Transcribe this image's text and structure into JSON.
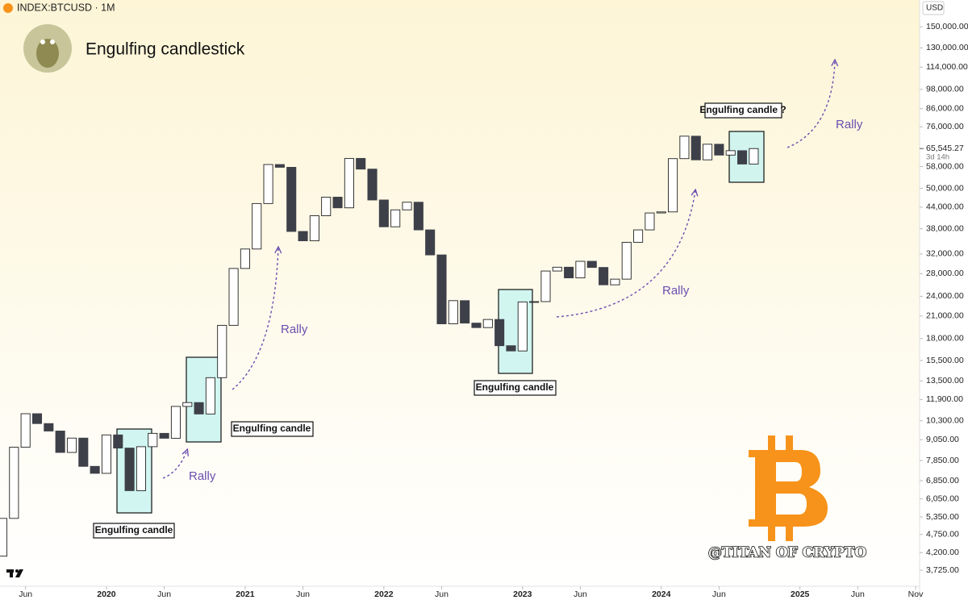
{
  "chart_data": {
    "type": "candlestick",
    "title": "Engulfing candlestick",
    "symbol": "INDEX:BTCUSD · 1M",
    "currency": "USD",
    "log_scale": true,
    "up_color": "#ffffff",
    "down_color": "#3e4049",
    "x": [
      0,
      1,
      2,
      3,
      4,
      5,
      6,
      7,
      8,
      9,
      10,
      11,
      12,
      13,
      14,
      15,
      16,
      17,
      18,
      19,
      20,
      21,
      22,
      23,
      24,
      25,
      26,
      27,
      28,
      29,
      30,
      31,
      32,
      33,
      34,
      35,
      36,
      37,
      38,
      39,
      40,
      41,
      42,
      43,
      44,
      45,
      46,
      47,
      48,
      49,
      50,
      51,
      52,
      53,
      54,
      55,
      56,
      57,
      58,
      59,
      60,
      61,
      62,
      63,
      64,
      65
    ],
    "open": [
      4100,
      5300,
      8600,
      10800,
      10100,
      9600,
      8300,
      9150,
      7550,
      7200,
      9350,
      8550,
      6400,
      8630,
      9450,
      9140,
      11350,
      11650,
      10780,
      13800,
      19700,
      29000,
      33100,
      45100,
      58800,
      57700,
      37300,
      35000,
      41500,
      47100,
      43800,
      61300,
      57000,
      46200,
      38500,
      43200,
      45500,
      37700,
      31800,
      19900,
      23300,
      20000,
      19400,
      20500,
      17150,
      16550,
      23100,
      23150,
      28500,
      29250,
      27200,
      30450,
      29200,
      25950,
      26970,
      34650,
      37700,
      42300,
      42600,
      61200,
      71300,
      60700,
      67500,
      62700,
      64600,
      59000
    ],
    "close": [
      5300,
      8600,
      10800,
      10100,
      9600,
      8300,
      9150,
      7550,
      7200,
      9350,
      8550,
      6400,
      8630,
      9450,
      9140,
      11350,
      11650,
      10780,
      13800,
      19700,
      29000,
      33100,
      45100,
      58800,
      57700,
      37300,
      35000,
      41500,
      47100,
      43800,
      61300,
      57000,
      46200,
      38500,
      43200,
      45500,
      37700,
      31800,
      19900,
      23300,
      20000,
      19400,
      20500,
      17150,
      16550,
      23100,
      23150,
      28500,
      29250,
      27200,
      30450,
      29200,
      25950,
      26970,
      34650,
      37700,
      42300,
      42600,
      61200,
      71300,
      60700,
      67500,
      62700,
      64600,
      59000,
      65545.27
    ],
    "last_price": {
      "value": 65545.27,
      "label": "65,545.27"
    },
    "countdown": "3d 14h",
    "xlim": [
      -0.21,
      79.35
    ],
    "xticks": [
      {
        "value": 2,
        "label": "Jun"
      },
      {
        "value": 9,
        "label": "2020"
      },
      {
        "value": 14,
        "label": "Jun"
      },
      {
        "value": 21,
        "label": "2021"
      },
      {
        "value": 26,
        "label": "Jun"
      },
      {
        "value": 33,
        "label": "2022"
      },
      {
        "value": 38,
        "label": "Jun"
      },
      {
        "value": 45,
        "label": "2023"
      },
      {
        "value": 50,
        "label": "Jun"
      },
      {
        "value": 57,
        "label": "2024"
      },
      {
        "value": 62,
        "label": "Jun"
      },
      {
        "value": 69,
        "label": "2025"
      },
      {
        "value": 74,
        "label": "Jun"
      },
      {
        "value": 79,
        "label": "Nov"
      }
    ],
    "ylim": [
      3340,
      180000
    ],
    "yticks": [
      {
        "value": 150000,
        "label": "150,000.00"
      },
      {
        "value": 130000,
        "label": "130,000.00"
      },
      {
        "value": 114000,
        "label": "114,000.00"
      },
      {
        "value": 98000,
        "label": "98,000.00"
      },
      {
        "value": 86000,
        "label": "86,000.00"
      },
      {
        "value": 76000,
        "label": "76,000.00"
      },
      {
        "value": 58000,
        "label": "58,000.00"
      },
      {
        "value": 50000,
        "label": "50,000.00"
      },
      {
        "value": 44000,
        "label": "44,000.00"
      },
      {
        "value": 38000,
        "label": "38,000.00"
      },
      {
        "value": 32000,
        "label": "32,000.00"
      },
      {
        "value": 28000,
        "label": "28,000.00"
      },
      {
        "value": 24000,
        "label": "24,000.00"
      },
      {
        "value": 21000,
        "label": "21,000.00"
      },
      {
        "value": 18000,
        "label": "18,000.00"
      },
      {
        "value": 15500,
        "label": "15,500.00"
      },
      {
        "value": 13500,
        "label": "13,500.00"
      },
      {
        "value": 11900,
        "label": "11,900.00"
      },
      {
        "value": 10300,
        "label": "10,300.00"
      },
      {
        "value": 9050,
        "label": "9,050.00"
      },
      {
        "value": 7850,
        "label": "7,850.00"
      },
      {
        "value": 6850,
        "label": "6,850.00"
      },
      {
        "value": 6050,
        "label": "6,050.00"
      },
      {
        "value": 5350,
        "label": "5,350.00"
      },
      {
        "value": 4750,
        "label": "4,750.00"
      },
      {
        "value": 4200,
        "label": "4,200.00"
      },
      {
        "value": 3725,
        "label": "3,725.00"
      }
    ],
    "annotations": {
      "engulfing": [
        "Engulfing candle",
        "Engulfing candle",
        "Engulfing candle",
        "Engulfing candle ?"
      ],
      "rally": [
        "Rally",
        "Rally",
        "Rally",
        "Rally"
      ],
      "watermark": "@TITAN OF CRYPTO"
    }
  }
}
